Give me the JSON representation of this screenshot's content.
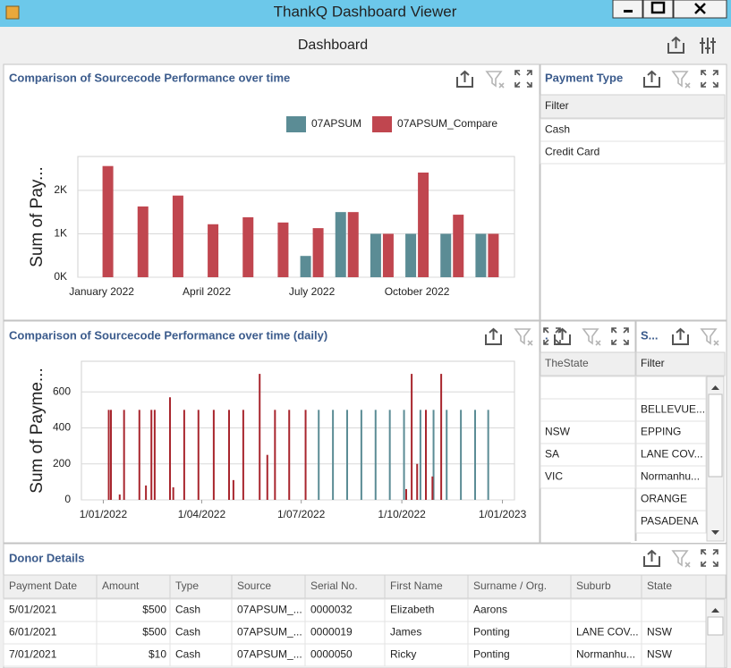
{
  "window": {
    "title": "ThankQ Dashboard Viewer"
  },
  "dashboard": {
    "title": "Dashboard"
  },
  "chart_data": [
    {
      "type": "bar",
      "title": "Comparison of Sourcecode Performance over time",
      "y_label": "Sum of Pay...",
      "categories": [
        "January 2022",
        null,
        null,
        "April 2022",
        null,
        null,
        "July 2022",
        null,
        null,
        "October 2022",
        null,
        null
      ],
      "series": [
        {
          "name": "07APSUM",
          "color": "#5b8c95",
          "values": [
            null,
            null,
            null,
            null,
            null,
            null,
            490,
            1500,
            1000,
            1000,
            1000,
            1000
          ]
        },
        {
          "name": "07APSUM_Compare",
          "color": "#c0464f",
          "values": [
            2560,
            1630,
            1880,
            1220,
            1380,
            1260,
            1130,
            1500,
            1000,
            2410,
            1440,
            1000
          ]
        }
      ],
      "ylim": [
        0,
        2780
      ],
      "yticks": [
        {
          "value": 0,
          "label": "0K"
        },
        {
          "value": 1000,
          "label": "1K"
        },
        {
          "value": 2000,
          "label": "2K"
        }
      ],
      "grid": true,
      "legend": "top-right"
    },
    {
      "type": "bar",
      "title": "Comparison of Sourcecode Performance over time (daily)",
      "y_label": "Sum of Payme...",
      "series": [
        {
          "color": "#5b8c95",
          "x": [
            "2022-07-17",
            "2022-07-30",
            "2022-08-12",
            "2022-08-25",
            "2022-09-07",
            "2022-09-20",
            "2022-10-03",
            "2022-10-18",
            "2022-10-30",
            "2022-11-11",
            "2022-11-24",
            "2022-12-07",
            "2022-12-19"
          ],
          "values": [
            500,
            500,
            500,
            500,
            500,
            500,
            500,
            500,
            500,
            500,
            500,
            500,
            500
          ]
        },
        {
          "color": "#a8262e",
          "x": [
            "2022-01-06",
            "2022-01-08",
            "2022-01-16",
            "2022-01-20",
            "2022-02-03",
            "2022-02-09",
            "2022-02-14",
            "2022-02-17",
            "2022-03-03",
            "2022-03-06",
            "2022-03-16",
            "2022-03-29",
            "2022-04-12",
            "2022-04-26",
            "2022-04-30",
            "2022-05-09",
            "2022-05-24",
            "2022-05-31",
            "2022-06-07",
            "2022-06-20",
            "2022-07-05",
            "2022-10-05",
            "2022-10-10",
            "2022-10-15",
            "2022-10-23",
            "2022-10-29",
            "2022-11-06"
          ],
          "values": [
            500,
            500,
            30,
            500,
            500,
            80,
            500,
            500,
            570,
            70,
            500,
            500,
            500,
            500,
            110,
            500,
            700,
            250,
            500,
            500,
            500,
            60,
            700,
            200,
            500,
            130,
            700
          ]
        }
      ],
      "xlim": [
        "2021-12-12",
        "2023-01-12"
      ],
      "xticks": [
        {
          "value": "2022-01-01",
          "label": "1/01/2022"
        },
        {
          "value": "2022-04-01",
          "label": "1/04/2022"
        },
        {
          "value": "2022-07-01",
          "label": "1/07/2022"
        },
        {
          "value": "2022-10-01",
          "label": "1/10/2022"
        },
        {
          "value": "2023-01-01",
          "label": "1/01/2023"
        }
      ],
      "ylim": [
        0,
        770
      ],
      "yticks": [
        0,
        200,
        400,
        600
      ],
      "grid": true
    }
  ],
  "payment_type": {
    "title": "Payment Type",
    "filter": "Filter",
    "items": [
      "Cash",
      "Credit Card"
    ]
  },
  "state_filter": {
    "title": ".",
    "column": "TheState",
    "items": [
      "NSW",
      "SA",
      "VIC"
    ]
  },
  "suburb_filter": {
    "title": "S...",
    "filter": "Filter",
    "items": [
      "BELLEVUE...",
      "EPPING",
      "LANE COV...",
      "Normanhu...",
      "ORANGE",
      "PASADENA"
    ]
  },
  "donor_details": {
    "title": "Donor Details",
    "columns": [
      "Payment Date",
      "Amount",
      "Type",
      "Source",
      "Serial No.",
      "First Name",
      "Surname / Org.",
      "Suburb",
      "State"
    ],
    "rows": [
      [
        "5/01/2021",
        "$500",
        "Cash",
        "07APSUM_...",
        "0000032",
        "Elizabeth",
        "Aarons",
        null,
        null
      ],
      [
        "6/01/2021",
        "$500",
        "Cash",
        "07APSUM_...",
        "0000019",
        "James",
        "Ponting",
        "LANE COV...",
        "NSW"
      ],
      [
        "7/01/2021",
        "$10",
        "Cash",
        "07APSUM_...",
        "0000050",
        "Ricky",
        "Ponting",
        "Normanhu...",
        "NSW"
      ]
    ]
  }
}
